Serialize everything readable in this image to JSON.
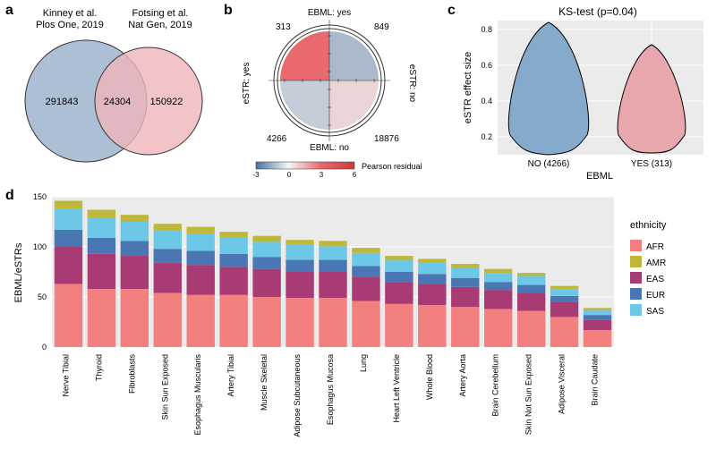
{
  "panel_a": {
    "label": "a",
    "left_title_line1": "Kinney et al.",
    "left_title_line2": "Plos One, 2019",
    "right_title_line1": "Fotsing et al.",
    "right_title_line2": "Nat Gen, 2019",
    "left_value": "291843",
    "overlap_value": "24304",
    "right_value": "150922",
    "left_color": "#a8bcd2",
    "right_color": "#f0b5b9",
    "overlap_color": "#9b8a8f",
    "title_fontsize": 11
  },
  "panel_b": {
    "label": "b",
    "top_text": "EBML: yes",
    "bottom_text": "EBML: no",
    "left_text": "eSTR: yes",
    "right_text": "eSTR: no",
    "q_tl": "313",
    "q_tr": "849",
    "q_bl": "4266",
    "q_br": "18876",
    "color_tl": "#e86a6f",
    "color_tr": "#aab9cc",
    "color_bl": "#c4cdd8",
    "color_br": "#e9d5d6",
    "outline_color": "#333333",
    "colorbar_label": "Pearson residual",
    "colorbar_ticks": [
      "-3",
      "0",
      "3",
      "6"
    ],
    "colorbar_colors": [
      "#4a6fa5",
      "#ffffff",
      "#e86a6f",
      "#c83b3e"
    ]
  },
  "panel_c": {
    "label": "c",
    "title": "KS-test (p=0.04)",
    "ylabel": "eSTR effect size",
    "xlabel": "EBML",
    "x_categories": [
      "NO (4266)",
      "YES (313)"
    ],
    "yticks": [
      "0.2",
      "0.4",
      "0.6",
      "0.8"
    ],
    "ylim": [
      0.1,
      0.85
    ],
    "violin_colors": [
      "#7ba3c9",
      "#e8a0a5"
    ],
    "violin_outline": "#000000",
    "background": "#ebebeb",
    "grid_color": "#ffffff"
  },
  "panel_d": {
    "label": "d",
    "ylabel": "EBML/eSTRs",
    "yticks": [
      "0",
      "50",
      "100",
      "150"
    ],
    "ylim": [
      0,
      150
    ],
    "legend_title": "ethnicity",
    "categories": [
      "Nerve Tibial",
      "Thyroid",
      "Fibroblasts",
      "Skin Sun Exposed",
      "Esophagus Muscularis",
      "Artery Tibial",
      "Muscle Skeletal",
      "Adipose Subcutaneous",
      "Esophagus Mucosa",
      "Lung",
      "Heart Left Ventricle",
      "Whole Blood",
      "Artery Aorta",
      "Brain Cerebellum",
      "Skin Not Sun Exposed",
      "Adipose Visceral",
      "Brain Caudate"
    ],
    "series": [
      {
        "name": "AFR",
        "color": "#f47f7f"
      },
      {
        "name": "AMR",
        "color": "#bdb83a"
      },
      {
        "name": "EAS",
        "color": "#a83a74"
      },
      {
        "name": "EUR",
        "color": "#4a77b3"
      },
      {
        "name": "SAS",
        "color": "#6dc8e8"
      }
    ],
    "data": {
      "AFR": [
        63,
        58,
        58,
        54,
        52,
        52,
        50,
        49,
        49,
        46,
        43,
        42,
        40,
        38,
        36,
        30,
        17
      ],
      "EAS": [
        37,
        35,
        33,
        30,
        30,
        28,
        28,
        26,
        26,
        24,
        22,
        21,
        20,
        19,
        18,
        15,
        10
      ],
      "EUR": [
        17,
        16,
        15,
        14,
        14,
        13,
        12,
        12,
        12,
        11,
        10,
        10,
        9,
        8,
        8,
        6,
        5
      ],
      "SAS": [
        21,
        20,
        19,
        18,
        17,
        16,
        15,
        15,
        14,
        13,
        12,
        11,
        10,
        9,
        9,
        7,
        5
      ],
      "AMR": [
        8,
        8,
        7,
        7,
        7,
        6,
        6,
        5,
        5,
        5,
        4,
        4,
        4,
        4,
        3,
        3,
        2
      ]
    },
    "background": "#ebebeb",
    "grid_color": "#ffffff",
    "bar_width": 0.85
  }
}
